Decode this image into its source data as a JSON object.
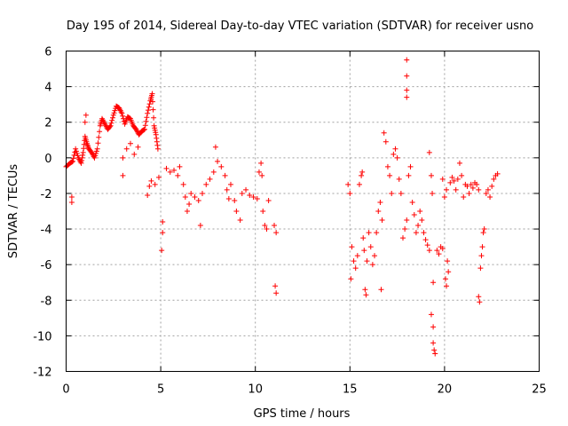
{
  "chart_data": {
    "type": "scatter",
    "title": "Day 195 of 2014, Sidereal Day-to-day VTEC variation (SDTVAR) for receiver usno",
    "xlabel": "GPS time / hours",
    "ylabel": "SDTVAR / TECUs",
    "xlim": [
      0,
      25
    ],
    "ylim": [
      -12,
      6
    ],
    "xticks": [
      0,
      5,
      10,
      15,
      20,
      25
    ],
    "yticks": [
      -12,
      -10,
      -8,
      -6,
      -4,
      -2,
      0,
      2,
      4,
      6
    ],
    "grid": true,
    "marker": "plus",
    "colors": {
      "points": "#ff0000",
      "grid": "#a0a0a0",
      "axes": "#000000"
    },
    "segments": [
      [
        0.0,
        -0.5
      ],
      [
        0.2,
        -0.3
      ],
      [
        0.35,
        -0.2
      ],
      [
        0.5,
        0.5
      ],
      [
        0.65,
        0.0
      ],
      [
        0.8,
        -0.3
      ],
      [
        0.9,
        0.3
      ],
      [
        1.0,
        1.2
      ],
      [
        1.1,
        0.8
      ],
      [
        1.2,
        0.5
      ],
      [
        1.35,
        0.3
      ],
      [
        1.5,
        0.0
      ],
      [
        1.65,
        0.5
      ],
      [
        1.8,
        1.8
      ],
      [
        1.9,
        2.2
      ],
      [
        2.05,
        1.9
      ],
      [
        2.2,
        1.6
      ],
      [
        2.35,
        1.8
      ],
      [
        2.5,
        2.4
      ],
      [
        2.65,
        2.9
      ],
      [
        2.8,
        2.8
      ],
      [
        2.95,
        2.5
      ],
      [
        3.1,
        1.9
      ],
      [
        3.25,
        2.3
      ],
      [
        3.4,
        2.2
      ],
      [
        3.55,
        1.8
      ],
      [
        3.7,
        1.6
      ],
      [
        3.85,
        1.3
      ],
      [
        4.0,
        1.5
      ],
      [
        4.15,
        1.6
      ],
      [
        4.3,
        2.5
      ],
      [
        4.45,
        3.2
      ],
      [
        4.55,
        3.6
      ],
      [
        4.65,
        1.8
      ],
      [
        4.75,
        1.3
      ],
      [
        4.85,
        0.5
      ]
    ],
    "points": [
      [
        0.3,
        -2.2
      ],
      [
        0.3,
        -2.5
      ],
      [
        1.05,
        2.4
      ],
      [
        1.0,
        2.0
      ],
      [
        3.0,
        0.0
      ],
      [
        3.2,
        0.5
      ],
      [
        3.4,
        0.8
      ],
      [
        3.6,
        0.2
      ],
      [
        3.8,
        0.6
      ],
      [
        3.0,
        -1.0
      ],
      [
        4.3,
        -2.1
      ],
      [
        4.4,
        -1.6
      ],
      [
        4.5,
        -1.3
      ],
      [
        4.7,
        -1.5
      ],
      [
        4.9,
        -1.1
      ],
      [
        5.1,
        -3.6
      ],
      [
        5.1,
        -4.2
      ],
      [
        5.05,
        -5.2
      ],
      [
        5.3,
        -0.6
      ],
      [
        5.5,
        -0.8
      ],
      [
        5.7,
        -0.7
      ],
      [
        5.9,
        -1.0
      ],
      [
        6.0,
        -0.5
      ],
      [
        6.2,
        -1.5
      ],
      [
        6.3,
        -2.2
      ],
      [
        6.4,
        -3.0
      ],
      [
        6.5,
        -2.6
      ],
      [
        6.6,
        -2.0
      ],
      [
        6.8,
        -2.2
      ],
      [
        7.0,
        -2.4
      ],
      [
        7.1,
        -3.8
      ],
      [
        7.2,
        -2.0
      ],
      [
        7.4,
        -1.5
      ],
      [
        7.6,
        -1.2
      ],
      [
        7.8,
        -0.8
      ],
      [
        7.9,
        0.6
      ],
      [
        8.0,
        -0.2
      ],
      [
        8.2,
        -0.5
      ],
      [
        8.4,
        -1.0
      ],
      [
        8.5,
        -1.8
      ],
      [
        8.6,
        -2.3
      ],
      [
        8.7,
        -1.5
      ],
      [
        8.9,
        -2.4
      ],
      [
        9.0,
        -3.0
      ],
      [
        9.2,
        -3.5
      ],
      [
        9.3,
        -2.0
      ],
      [
        9.5,
        -1.8
      ],
      [
        9.7,
        -2.1
      ],
      [
        9.9,
        -2.2
      ],
      [
        10.1,
        -2.3
      ],
      [
        10.2,
        -0.8
      ],
      [
        10.3,
        -0.3
      ],
      [
        10.35,
        -1.0
      ],
      [
        10.4,
        -3.0
      ],
      [
        10.5,
        -3.8
      ],
      [
        10.6,
        -4.0
      ],
      [
        10.7,
        -2.4
      ],
      [
        11.0,
        -3.8
      ],
      [
        11.1,
        -4.2
      ],
      [
        11.05,
        -7.2
      ],
      [
        11.1,
        -7.6
      ],
      [
        14.9,
        -1.5
      ],
      [
        15.0,
        -2.0
      ],
      [
        15.05,
        -6.8
      ],
      [
        15.1,
        -5.0
      ],
      [
        15.2,
        -5.8
      ],
      [
        15.3,
        -6.2
      ],
      [
        15.4,
        -5.5
      ],
      [
        15.5,
        -1.5
      ],
      [
        15.6,
        -1.0
      ],
      [
        15.65,
        -0.8
      ],
      [
        15.7,
        -4.5
      ],
      [
        15.75,
        -5.2
      ],
      [
        15.8,
        -7.4
      ],
      [
        15.85,
        -7.7
      ],
      [
        15.9,
        -5.8
      ],
      [
        16.0,
        -4.2
      ],
      [
        16.1,
        -5.0
      ],
      [
        16.2,
        -6.0
      ],
      [
        16.3,
        -5.5
      ],
      [
        16.4,
        -4.2
      ],
      [
        16.5,
        -3.0
      ],
      [
        16.6,
        -2.5
      ],
      [
        16.65,
        -7.4
      ],
      [
        16.7,
        -3.5
      ],
      [
        16.8,
        1.4
      ],
      [
        16.9,
        0.9
      ],
      [
        17.0,
        -0.5
      ],
      [
        17.1,
        -1.0
      ],
      [
        17.2,
        -2.0
      ],
      [
        17.3,
        0.2
      ],
      [
        17.4,
        0.5
      ],
      [
        17.5,
        0.0
      ],
      [
        17.6,
        -1.2
      ],
      [
        17.7,
        -2.0
      ],
      [
        17.8,
        -4.5
      ],
      [
        17.9,
        -4.0
      ],
      [
        18.0,
        -3.5
      ],
      [
        18.0,
        5.5
      ],
      [
        18.0,
        4.6
      ],
      [
        18.0,
        3.8
      ],
      [
        18.0,
        3.4
      ],
      [
        18.1,
        -1.0
      ],
      [
        18.2,
        -0.5
      ],
      [
        18.3,
        -2.5
      ],
      [
        18.4,
        -3.2
      ],
      [
        18.5,
        -4.2
      ],
      [
        18.6,
        -3.8
      ],
      [
        18.7,
        -3.0
      ],
      [
        18.8,
        -3.5
      ],
      [
        18.9,
        -4.2
      ],
      [
        19.0,
        -4.6
      ],
      [
        19.1,
        -4.9
      ],
      [
        19.2,
        -5.2
      ],
      [
        19.2,
        0.3
      ],
      [
        19.3,
        -1.0
      ],
      [
        19.35,
        -2.0
      ],
      [
        19.4,
        -7.0
      ],
      [
        19.3,
        -8.8
      ],
      [
        19.4,
        -9.5
      ],
      [
        19.4,
        -10.4
      ],
      [
        19.45,
        -10.8
      ],
      [
        19.5,
        -11.0
      ],
      [
        19.6,
        -5.2
      ],
      [
        19.7,
        -5.4
      ],
      [
        19.8,
        -5.0
      ],
      [
        19.9,
        -5.1
      ],
      [
        19.9,
        -1.2
      ],
      [
        20.0,
        -2.2
      ],
      [
        20.1,
        -1.8
      ],
      [
        20.05,
        -6.8
      ],
      [
        20.1,
        -7.2
      ],
      [
        20.15,
        -5.8
      ],
      [
        20.2,
        -6.4
      ],
      [
        20.3,
        -1.4
      ],
      [
        20.4,
        -1.1
      ],
      [
        20.5,
        -1.3
      ],
      [
        20.6,
        -1.8
      ],
      [
        20.7,
        -1.2
      ],
      [
        20.8,
        -0.3
      ],
      [
        20.9,
        -1.0
      ],
      [
        21.0,
        -2.2
      ],
      [
        21.1,
        -1.5
      ],
      [
        21.2,
        -1.6
      ],
      [
        21.3,
        -2.0
      ],
      [
        21.4,
        -1.5
      ],
      [
        21.5,
        -1.7
      ],
      [
        21.6,
        -1.4
      ],
      [
        21.7,
        -1.5
      ],
      [
        21.8,
        -1.8
      ],
      [
        21.8,
        -7.8
      ],
      [
        21.85,
        -8.1
      ],
      [
        21.9,
        -6.2
      ],
      [
        21.95,
        -5.5
      ],
      [
        22.0,
        -5.0
      ],
      [
        22.05,
        -4.2
      ],
      [
        22.1,
        -4.0
      ],
      [
        22.2,
        -2.0
      ],
      [
        22.3,
        -1.8
      ],
      [
        22.4,
        -2.2
      ],
      [
        22.5,
        -1.6
      ],
      [
        22.6,
        -1.2
      ],
      [
        22.7,
        -1.0
      ],
      [
        22.8,
        -0.9
      ]
    ]
  }
}
